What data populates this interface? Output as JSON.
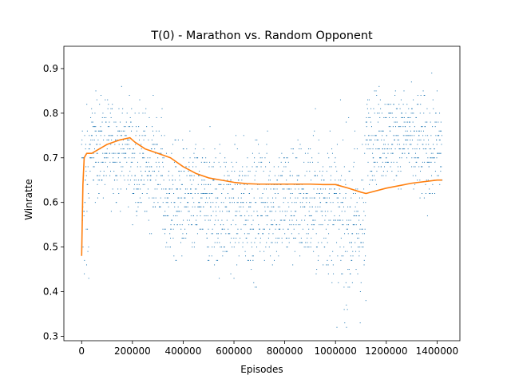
{
  "chart_data": {
    "type": "scatter",
    "title": "T(0) - Marathon vs. Random Opponent",
    "xlabel": "Episodes",
    "ylabel": "Winratte",
    "xlim": [
      -70000,
      1490000
    ],
    "ylim": [
      0.29,
      0.95
    ],
    "xticks": [
      0,
      200000,
      400000,
      600000,
      800000,
      1000000,
      1200000,
      1400000
    ],
    "xtick_labels": [
      "0",
      "200000",
      "400000",
      "600000",
      "800000",
      "1000000",
      "1200000",
      "1400000"
    ],
    "yticks": [
      0.3,
      0.4,
      0.5,
      0.6,
      0.7,
      0.8,
      0.9
    ],
    "ytick_labels": [
      "0.3",
      "0.4",
      "0.5",
      "0.6",
      "0.7",
      "0.8",
      "0.9"
    ],
    "grid": false,
    "series": [
      {
        "kind": "scatter",
        "color": "#1f77b4",
        "marker": "dot",
        "note_y_quantization": 0.01,
        "regimes": [
          {
            "x_range": [
              0,
              30000
            ],
            "y_center": 0.62,
            "y_spread": 0.11,
            "y_min": 0.43,
            "y_max": 0.82
          },
          {
            "x_range": [
              30000,
              200000
            ],
            "y_center": 0.72,
            "y_spread": 0.055,
            "y_min": 0.52,
            "y_max": 0.89
          },
          {
            "x_range": [
              200000,
              320000
            ],
            "y_center": 0.68,
            "y_spread": 0.06,
            "y_min": 0.45,
            "y_max": 0.87
          },
          {
            "x_range": [
              320000,
              500000
            ],
            "y_center": 0.6,
            "y_spread": 0.065,
            "y_min": 0.32,
            "y_max": 0.78
          },
          {
            "x_range": [
              500000,
              700000
            ],
            "y_center": 0.59,
            "y_spread": 0.07,
            "y_min": 0.36,
            "y_max": 0.79
          },
          {
            "x_range": [
              700000,
              900000
            ],
            "y_center": 0.6,
            "y_spread": 0.07,
            "y_min": 0.37,
            "y_max": 0.83
          },
          {
            "x_range": [
              900000,
              1000000
            ],
            "y_center": 0.6,
            "y_spread": 0.08,
            "y_min": 0.35,
            "y_max": 0.83
          },
          {
            "x_range": [
              1000000,
              1120000
            ],
            "y_center": 0.55,
            "y_spread": 0.1,
            "y_min": 0.32,
            "y_max": 0.83
          },
          {
            "x_range": [
              1120000,
              1300000
            ],
            "y_center": 0.75,
            "y_spread": 0.05,
            "y_min": 0.55,
            "y_max": 0.92
          },
          {
            "x_range": [
              1300000,
              1420000
            ],
            "y_center": 0.72,
            "y_spread": 0.06,
            "y_min": 0.52,
            "y_max": 0.9
          }
        ]
      },
      {
        "kind": "line",
        "color": "#ff7f0e",
        "x": [
          0,
          5000,
          10000,
          20000,
          40000,
          70000,
          100000,
          150000,
          190000,
          210000,
          250000,
          300000,
          350000,
          400000,
          450000,
          500000,
          550000,
          600000,
          650000,
          700000,
          750000,
          800000,
          850000,
          900000,
          950000,
          1000000,
          1050000,
          1100000,
          1120000,
          1200000,
          1300000,
          1400000,
          1420000
        ],
        "y": [
          0.48,
          0.64,
          0.7,
          0.71,
          0.71,
          0.72,
          0.73,
          0.74,
          0.745,
          0.735,
          0.72,
          0.71,
          0.7,
          0.68,
          0.665,
          0.655,
          0.65,
          0.645,
          0.642,
          0.641,
          0.641,
          0.641,
          0.641,
          0.641,
          0.64,
          0.64,
          0.632,
          0.623,
          0.62,
          0.632,
          0.643,
          0.65,
          0.65
        ]
      }
    ]
  }
}
